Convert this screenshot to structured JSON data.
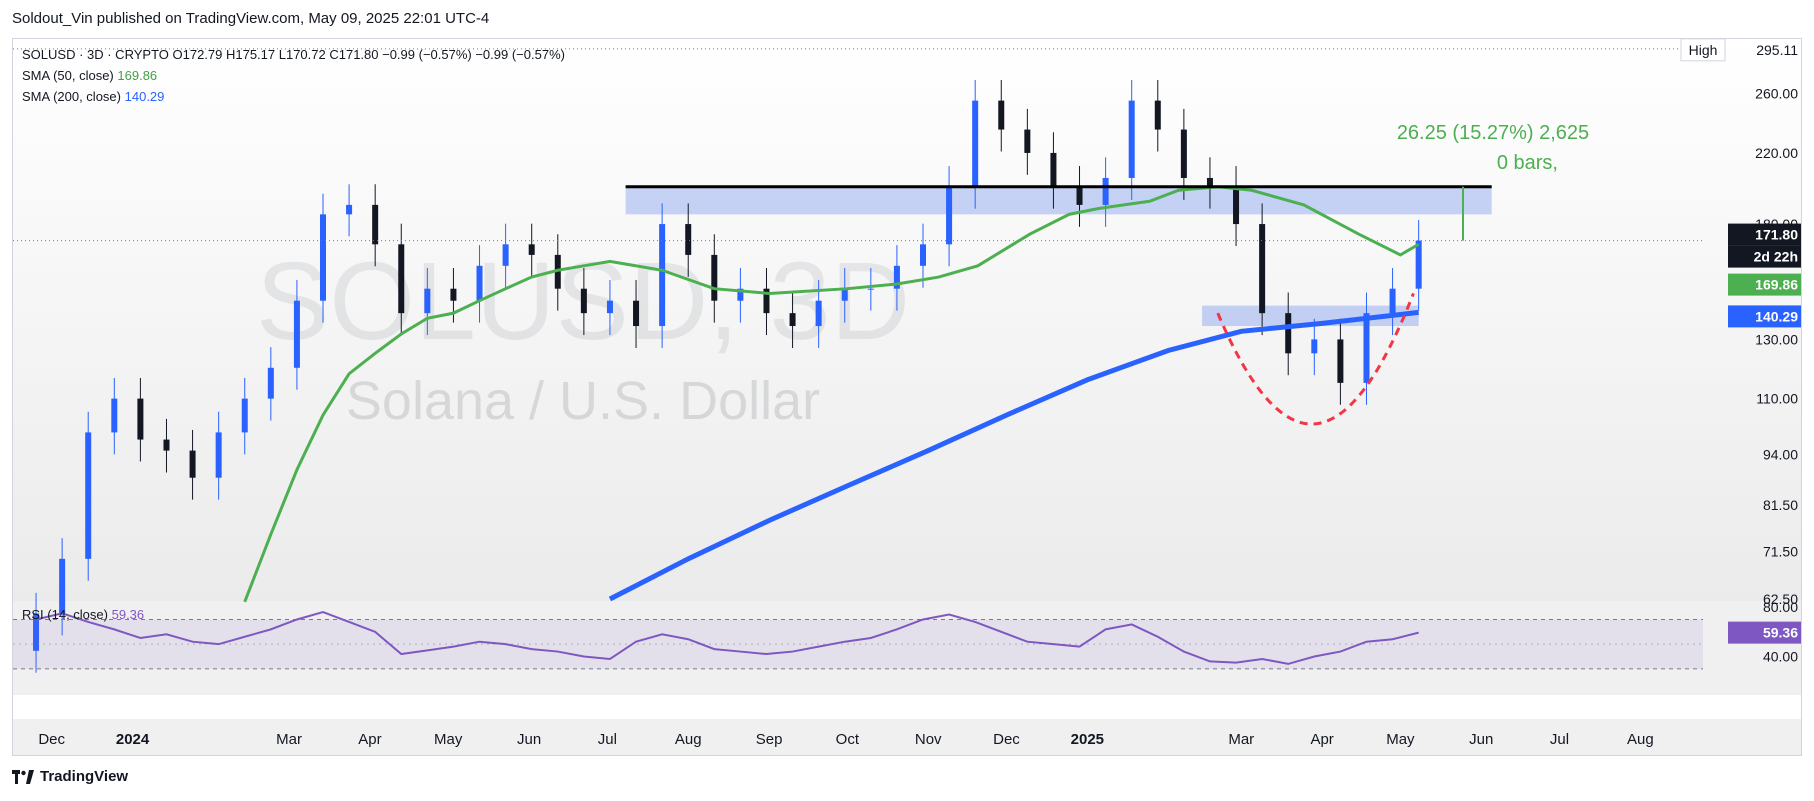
{
  "header": {
    "attribution": "Soldout_Vin published on TradingView.com, May 09, 2025 22:01 UTC-4"
  },
  "legend": {
    "ohlc": "SOLUSD · 3D · CRYPTO  O172.79  H175.17  L170.72  C171.80  −0.99 (−0.57%)  −0.99 (−0.57%)",
    "sma50_label": "SMA (50, close)",
    "sma50_value": "169.86",
    "sma200_label": "SMA (200, close)",
    "sma200_value": "140.29"
  },
  "watermark": {
    "symbol": "SOLUSD, 3D",
    "name": "Solana / U.S. Dollar"
  },
  "price_axis": {
    "ticks": [
      "295.11",
      "260.00",
      "220.00",
      "180.00",
      "130.00",
      "110.00",
      "94.00",
      "81.50",
      "71.50",
      "62.50"
    ],
    "high_label": "High",
    "last_price": "171.80",
    "countdown": "2d 22h",
    "sma50_tag": "169.86",
    "sma200_tag": "140.29"
  },
  "measure": {
    "line1": "26.25 (15.27%) 2,625",
    "line2": "0 bars,"
  },
  "rsi": {
    "label": "RSI (14, close)",
    "value": "59.36",
    "ticks": [
      "80.00",
      "40.00"
    ],
    "tag": "59.36"
  },
  "time_axis": [
    "Dec",
    "2024",
    "Mar",
    "Apr",
    "May",
    "Jun",
    "Jul",
    "Aug",
    "Sep",
    "Oct",
    "Nov",
    "Dec",
    "2025",
    "Mar",
    "Apr",
    "May",
    "Jun",
    "Jul",
    "Aug"
  ],
  "footer": {
    "brand": "TradingView"
  },
  "colors": {
    "up": "#2962ff",
    "down": "#131722",
    "sma50": "#4caf50",
    "sma200": "#2962ff",
    "rsi": "#7e57c2",
    "zone": "#90a9f0",
    "cup": "#f23645"
  },
  "chart_data": {
    "type": "candlestick",
    "title": "SOLUSD · 3D · CRYPTO",
    "scale": "log",
    "ylim": [
      62.5,
      300
    ],
    "x_range": [
      "2023-11-20",
      "2025-08-25"
    ],
    "x": [
      "2023-11-25",
      "2023-12-05",
      "2023-12-15",
      "2023-12-25",
      "2024-01-04",
      "2024-01-14",
      "2024-01-24",
      "2024-02-03",
      "2024-02-13",
      "2024-02-23",
      "2024-03-04",
      "2024-03-14",
      "2024-03-24",
      "2024-04-03",
      "2024-04-13",
      "2024-04-23",
      "2024-05-03",
      "2024-05-13",
      "2024-05-23",
      "2024-06-02",
      "2024-06-12",
      "2024-06-22",
      "2024-07-02",
      "2024-07-12",
      "2024-07-22",
      "2024-08-01",
      "2024-08-11",
      "2024-08-21",
      "2024-08-31",
      "2024-09-10",
      "2024-09-20",
      "2024-09-30",
      "2024-10-10",
      "2024-10-20",
      "2024-10-30",
      "2024-11-09",
      "2024-11-19",
      "2024-11-29",
      "2024-12-09",
      "2024-12-19",
      "2024-12-29",
      "2025-01-08",
      "2025-01-18",
      "2025-01-28",
      "2025-02-07",
      "2025-02-17",
      "2025-02-27",
      "2025-03-09",
      "2025-03-19",
      "2025-03-29",
      "2025-04-08",
      "2025-04-18",
      "2025-04-28",
      "2025-05-08"
    ],
    "close": [
      60,
      70,
      100,
      110,
      98,
      95,
      88,
      100,
      110,
      120,
      145,
      185,
      190,
      170,
      140,
      150,
      145,
      160,
      170,
      165,
      150,
      140,
      145,
      135,
      180,
      165,
      145,
      150,
      140,
      135,
      145,
      150,
      150,
      160,
      170,
      200,
      255,
      235,
      220,
      200,
      190,
      205,
      255,
      235,
      205,
      200,
      180,
      140,
      125,
      130,
      115,
      140,
      150,
      171.8
    ],
    "sma50": [
      null,
      null,
      null,
      null,
      null,
      null,
      null,
      null,
      62,
      75,
      90,
      105,
      118,
      125,
      132,
      138,
      140,
      145,
      150,
      155,
      158,
      160,
      162,
      158,
      150,
      148,
      150,
      152,
      155,
      160,
      175,
      185,
      188,
      190,
      192,
      198,
      200,
      198,
      190,
      175,
      165,
      170
    ],
    "sma50_dates": [
      "",
      "",
      "",
      "",
      "",
      "",
      "",
      "",
      "2024-02-13",
      "2024-02-23",
      "2024-03-04",
      "2024-03-14",
      "2024-03-24",
      "2024-04-03",
      "2024-04-13",
      "2024-04-23",
      "2024-05-03",
      "2024-05-13",
      "2024-05-23",
      "2024-06-02",
      "2024-06-12",
      "2024-06-22",
      "2024-07-02",
      "2024-07-22",
      "2024-08-11",
      "2024-09-01",
      "2024-10-01",
      "2024-10-20",
      "2024-11-05",
      "2024-11-20",
      "2024-12-10",
      "2024-12-25",
      "2025-01-05",
      "2025-01-15",
      "2025-01-25",
      "2025-02-05",
      "2025-02-20",
      "2025-03-05",
      "2025-03-25",
      "2025-04-15",
      "2025-05-01",
      "2025-05-08"
    ],
    "sma200_points": [
      [
        "2024-07-02",
        62.5
      ],
      [
        "2024-08-01",
        70
      ],
      [
        "2024-09-01",
        78
      ],
      [
        "2024-10-01",
        86
      ],
      [
        "2024-11-01",
        95
      ],
      [
        "2024-12-01",
        105
      ],
      [
        "2025-01-01",
        116
      ],
      [
        "2025-02-01",
        126
      ],
      [
        "2025-03-01",
        133
      ],
      [
        "2025-04-01",
        136
      ],
      [
        "2025-05-08",
        140.29
      ]
    ],
    "resistance_level": 200,
    "support_zone": [
      135,
      143
    ],
    "resistance_zone": [
      185,
      200
    ],
    "last_price": 171.8,
    "measure_pct": 15.27
  },
  "rsi_data": {
    "values": [
      70,
      75,
      68,
      62,
      55,
      58,
      52,
      50,
      56,
      62,
      70,
      76,
      68,
      60,
      42,
      45,
      48,
      52,
      50,
      46,
      44,
      40,
      38,
      52,
      58,
      54,
      46,
      44,
      42,
      44,
      48,
      52,
      55,
      62,
      70,
      74,
      68,
      60,
      52,
      50,
      48,
      62,
      66,
      56,
      44,
      36,
      35,
      38,
      34,
      40,
      44,
      52,
      54,
      59.36
    ],
    "bands": [
      70,
      30
    ]
  }
}
